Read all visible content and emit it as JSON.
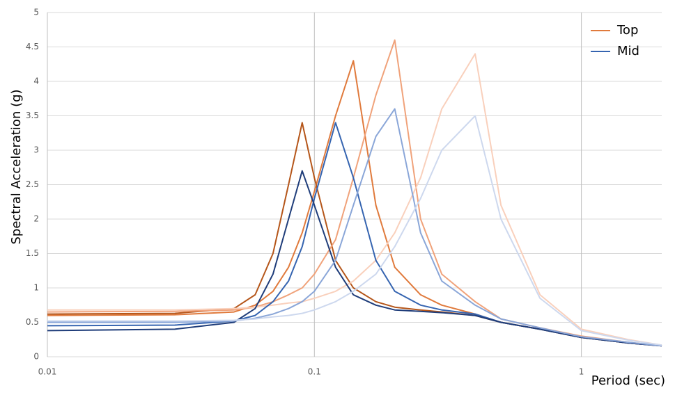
{
  "chart_data": {
    "type": "line",
    "y_label": "Spectral Acceleration (g)",
    "x_label": "Period (sec)",
    "xscale": "log",
    "xlim": [
      0.01,
      2
    ],
    "xticks": [
      0.01,
      0.1,
      1
    ],
    "ylim": [
      0,
      5
    ],
    "yticks": [
      0,
      0.5,
      1,
      1.5,
      2,
      2.5,
      3,
      3.5,
      4,
      4.5,
      5
    ],
    "grid": true,
    "legend": "upper right",
    "x": [
      0.01,
      0.03,
      0.05,
      0.06,
      0.07,
      0.08,
      0.09,
      0.1,
      0.12,
      0.14,
      0.17,
      0.2,
      0.25,
      0.3,
      0.4,
      0.5,
      0.7,
      1,
      1.5,
      2
    ],
    "series": [
      {
        "name": "Top",
        "color": "#e07a3c",
        "values": [
          0.6,
          0.61,
          0.65,
          0.75,
          0.95,
          1.3,
          1.8,
          2.4,
          3.5,
          4.3,
          2.2,
          1.3,
          0.9,
          0.75,
          0.62,
          0.5,
          0.4,
          0.28,
          0.2,
          0.16
        ]
      },
      {
        "name": "Top",
        "color": "#b5561a",
        "values": [
          0.62,
          0.63,
          0.7,
          0.9,
          1.5,
          2.5,
          3.4,
          2.6,
          1.4,
          1.0,
          0.8,
          0.72,
          0.68,
          0.65,
          0.6,
          0.5,
          0.4,
          0.28,
          0.2,
          0.16
        ]
      },
      {
        "name": "Top",
        "color": "#f0a27a",
        "values": [
          0.65,
          0.66,
          0.68,
          0.72,
          0.8,
          0.9,
          1.0,
          1.2,
          1.7,
          2.6,
          3.8,
          4.6,
          2.0,
          1.2,
          0.8,
          0.55,
          0.42,
          0.3,
          0.21,
          0.16
        ]
      },
      {
        "name": "Top",
        "color": "#f9d0bc",
        "values": [
          0.68,
          0.68,
          0.7,
          0.72,
          0.75,
          0.78,
          0.8,
          0.85,
          0.95,
          1.1,
          1.4,
          1.8,
          2.6,
          3.6,
          4.4,
          2.2,
          0.9,
          0.4,
          0.25,
          0.17
        ]
      },
      {
        "name": "Mid",
        "color": "#3564b0",
        "values": [
          0.45,
          0.46,
          0.52,
          0.6,
          0.8,
          1.1,
          1.6,
          2.3,
          3.4,
          2.6,
          1.4,
          0.95,
          0.75,
          0.68,
          0.62,
          0.5,
          0.4,
          0.28,
          0.2,
          0.16
        ]
      },
      {
        "name": "Mid",
        "color": "#1f3d7a",
        "values": [
          0.38,
          0.4,
          0.5,
          0.7,
          1.2,
          2.0,
          2.7,
          2.2,
          1.3,
          0.9,
          0.75,
          0.68,
          0.66,
          0.64,
          0.6,
          0.5,
          0.4,
          0.28,
          0.2,
          0.16
        ]
      },
      {
        "name": "Mid",
        "color": "#8aa6d8",
        "values": [
          0.5,
          0.5,
          0.52,
          0.56,
          0.62,
          0.7,
          0.8,
          0.95,
          1.4,
          2.2,
          3.2,
          3.6,
          1.8,
          1.1,
          0.75,
          0.55,
          0.42,
          0.29,
          0.21,
          0.16
        ]
      },
      {
        "name": "Mid",
        "color": "#cdd8ee",
        "values": [
          0.52,
          0.52,
          0.53,
          0.55,
          0.58,
          0.6,
          0.63,
          0.68,
          0.8,
          0.95,
          1.2,
          1.6,
          2.3,
          3.0,
          3.5,
          2.0,
          0.85,
          0.38,
          0.24,
          0.17
        ]
      }
    ]
  }
}
